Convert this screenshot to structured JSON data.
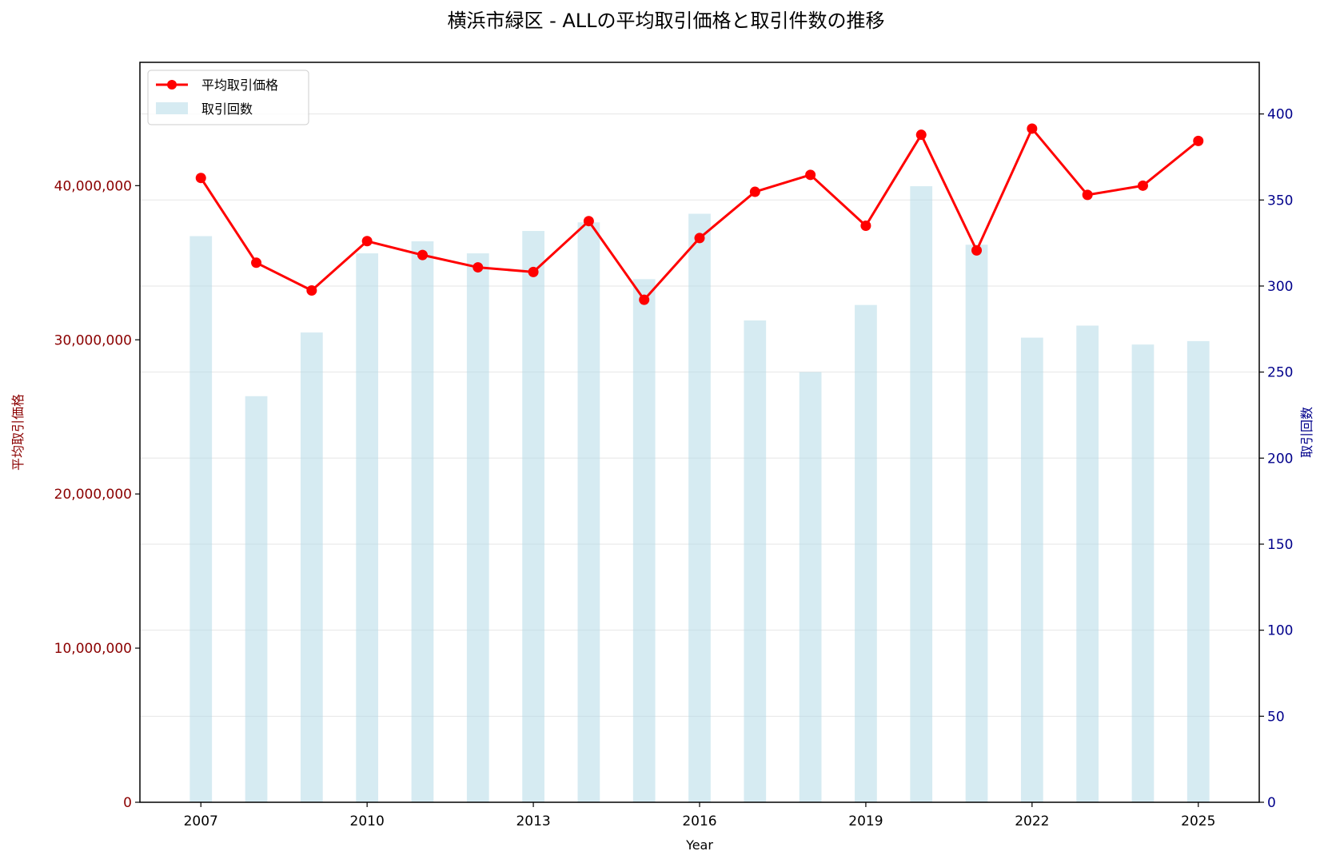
{
  "chart_data": {
    "type": "bar+line",
    "title": "横浜市緑区 - ALLの平均取引価格と取引件数の推移",
    "xlabel": "Year",
    "ylabel_left": "平均取引価格",
    "ylabel_right": "取引回数",
    "x": [
      2007,
      2008,
      2009,
      2010,
      2011,
      2012,
      2013,
      2014,
      2015,
      2016,
      2017,
      2018,
      2019,
      2020,
      2021,
      2022,
      2023,
      2024,
      2025
    ],
    "xticks": [
      "2007",
      "2010",
      "2013",
      "2016",
      "2019",
      "2022",
      "2025"
    ],
    "xlim": [
      2005.9,
      2026.1
    ],
    "ylim_left": [
      0,
      48000000
    ],
    "ylim_right": [
      0,
      430
    ],
    "yticks_left": [
      "0",
      "10,000,000",
      "20,000,000",
      "30,000,000",
      "40,000,000"
    ],
    "yticks_right": [
      "0",
      "50",
      "100",
      "150",
      "200",
      "250",
      "300",
      "350",
      "400"
    ],
    "grid": true,
    "legend_position": "upper-left",
    "series": [
      {
        "name": "平均取引価格",
        "type": "line",
        "axis": "left",
        "color": "#ff0000",
        "marker": "circle",
        "values": [
          40500000,
          35000000,
          33200000,
          36400000,
          35500000,
          34700000,
          34400000,
          37700000,
          32600000,
          36600000,
          39600000,
          40700000,
          37400000,
          43300000,
          35800000,
          43700000,
          39400000,
          40000000,
          42900000
        ]
      },
      {
        "name": "取引回数",
        "type": "bar",
        "axis": "right",
        "color": "#add8e6",
        "opacity": 0.5,
        "values": [
          329,
          236,
          273,
          319,
          326,
          319,
          332,
          337,
          304,
          342,
          280,
          250,
          289,
          358,
          324,
          270,
          277,
          266,
          268
        ]
      }
    ],
    "colors": {
      "left_axis": "#8b0000",
      "right_axis": "#00008b",
      "grid": "#e6e6e6"
    }
  }
}
